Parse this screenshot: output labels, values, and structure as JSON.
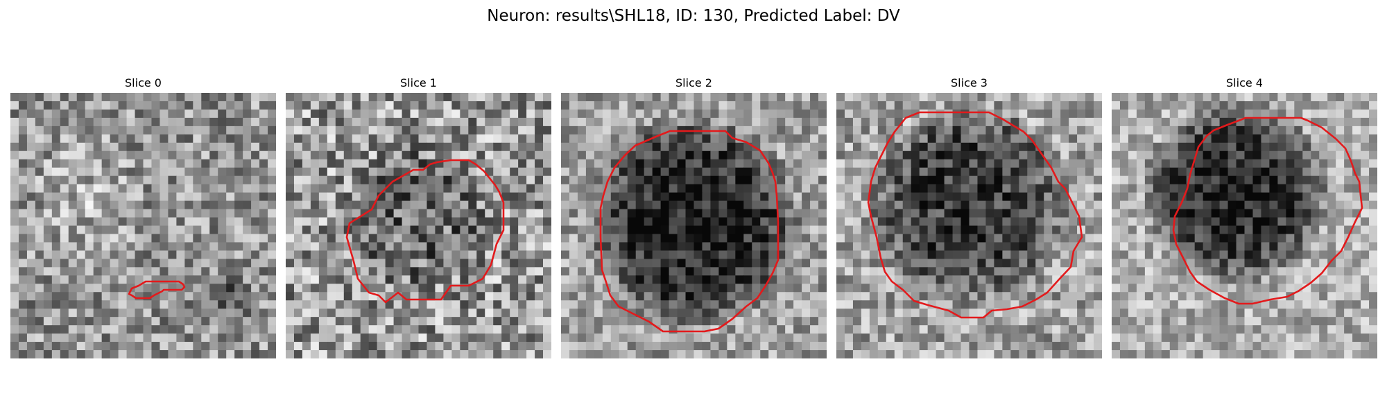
{
  "figure": {
    "title": "Neuron: results\\SHL18, ID: 130, Predicted Label: DV"
  },
  "panels": [
    {
      "title": "Slice 0"
    },
    {
      "title": "Slice 1"
    },
    {
      "title": "Slice 2"
    },
    {
      "title": "Slice 3"
    },
    {
      "title": "Slice 4"
    }
  ],
  "colors": {
    "contour": "#e31a1c",
    "background": "#ffffff",
    "colormap": "grayscale"
  }
}
